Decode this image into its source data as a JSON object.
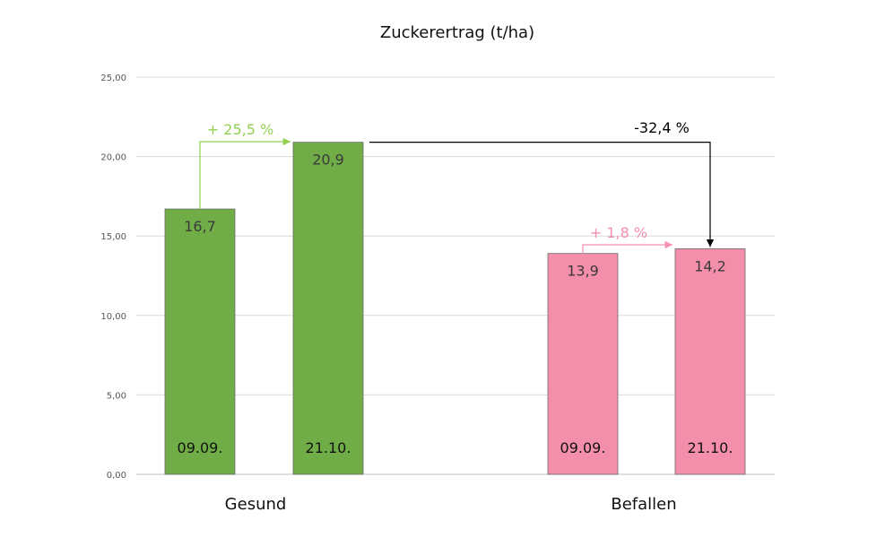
{
  "chart_data": {
    "type": "bar",
    "title": "Zuckerertrag (t/ha)",
    "xlabel": "",
    "ylabel": "",
    "ylim": [
      0,
      25
    ],
    "yticks": [
      "0,00",
      "5,00",
      "10,00",
      "15,00",
      "20,00",
      "25,00"
    ],
    "grid": true,
    "groups": [
      {
        "name": "Gesund",
        "color": "#70ad47",
        "bars": [
          {
            "date": "09.09.",
            "value": 16.7,
            "value_label": "16,7"
          },
          {
            "date": "21.10.",
            "value": 20.9,
            "value_label": "20,9"
          }
        ],
        "annotation": {
          "text": "+ 25,5 %",
          "color": "#92d050"
        }
      },
      {
        "name": "Befallen",
        "color": "#f48fab",
        "bars": [
          {
            "date": "09.09.",
            "value": 13.9,
            "value_label": "13,9"
          },
          {
            "date": "21.10.",
            "value": 14.2,
            "value_label": "14,2"
          }
        ],
        "annotation": {
          "text": "+ 1,8 %",
          "color": "#f48fab"
        }
      }
    ],
    "cross_annotation": {
      "text": "-32,4 %",
      "color": "#000000"
    }
  }
}
